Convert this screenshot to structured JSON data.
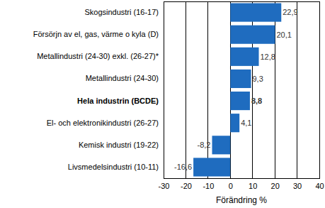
{
  "chart_data": {
    "type": "bar",
    "orientation": "horizontal",
    "x_label": "Förändring %",
    "categories": [
      "Skogsindustri (16-17)",
      "Försörjn av el, gas, värme o kyla (D)",
      "Metallindustri (24-30) exkl. (26-27)*",
      "Metallindustri (24-30)",
      "Hela industrin (BCDE)",
      "El- och elektronikindustri (26-27)",
      "Kemisk industri (19-22)",
      "Livsmedelsindustri (10-11)"
    ],
    "values": [
      22.9,
      20.1,
      12.8,
      9.3,
      8.8,
      4.1,
      -8.2,
      -16.6
    ],
    "value_labels": [
      "22,9",
      "20,1",
      "12,8",
      "9,3",
      "8,8",
      "4,1",
      "-8,2",
      "-16,6"
    ],
    "data_labels": true,
    "color": "#1f6cbf",
    "xlim": [
      -30,
      40
    ],
    "xticks": [
      -30,
      -20,
      -10,
      0,
      10,
      20,
      30,
      40
    ],
    "grid": true
  }
}
